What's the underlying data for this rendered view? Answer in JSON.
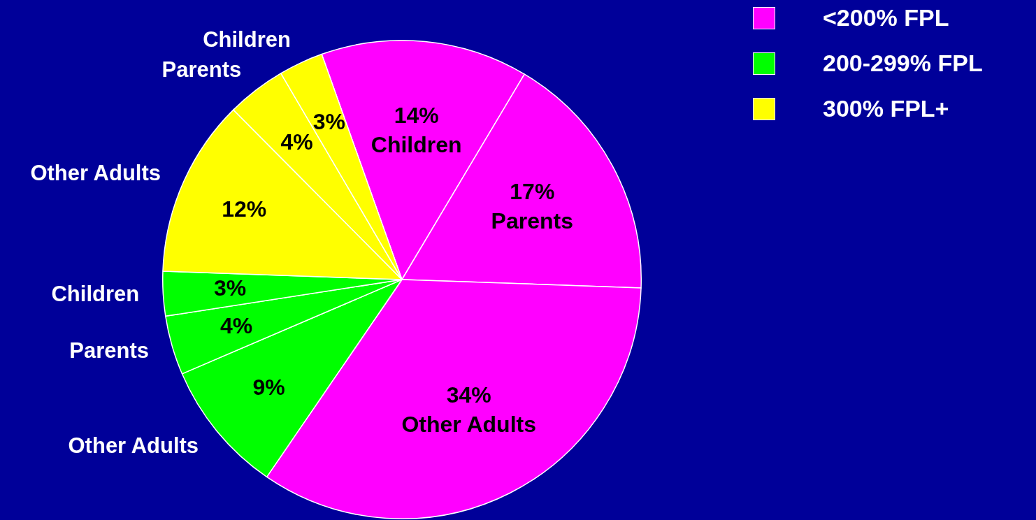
{
  "chart_data": {
    "type": "pie",
    "categories": [
      "Children",
      "Parents",
      "Other Adults",
      "Other Adults",
      "Parents",
      "Children",
      "Other Adults",
      "Parents",
      "Children"
    ],
    "values": [
      14,
      17,
      34,
      9,
      4,
      3,
      12,
      4,
      3
    ],
    "value_labels": [
      "14%",
      "17%",
      "34%",
      "9%",
      "4%",
      "3%",
      "12%",
      "4%",
      "3%"
    ],
    "colors": [
      "#ff00ff",
      "#ff00ff",
      "#ff00ff",
      "#00ff00",
      "#00ff00",
      "#00ff00",
      "#ffff00",
      "#ffff00",
      "#ffff00"
    ],
    "annotations": [
      "<200% FPL",
      "200-299% FPL",
      "300% FPL+"
    ]
  }
}
